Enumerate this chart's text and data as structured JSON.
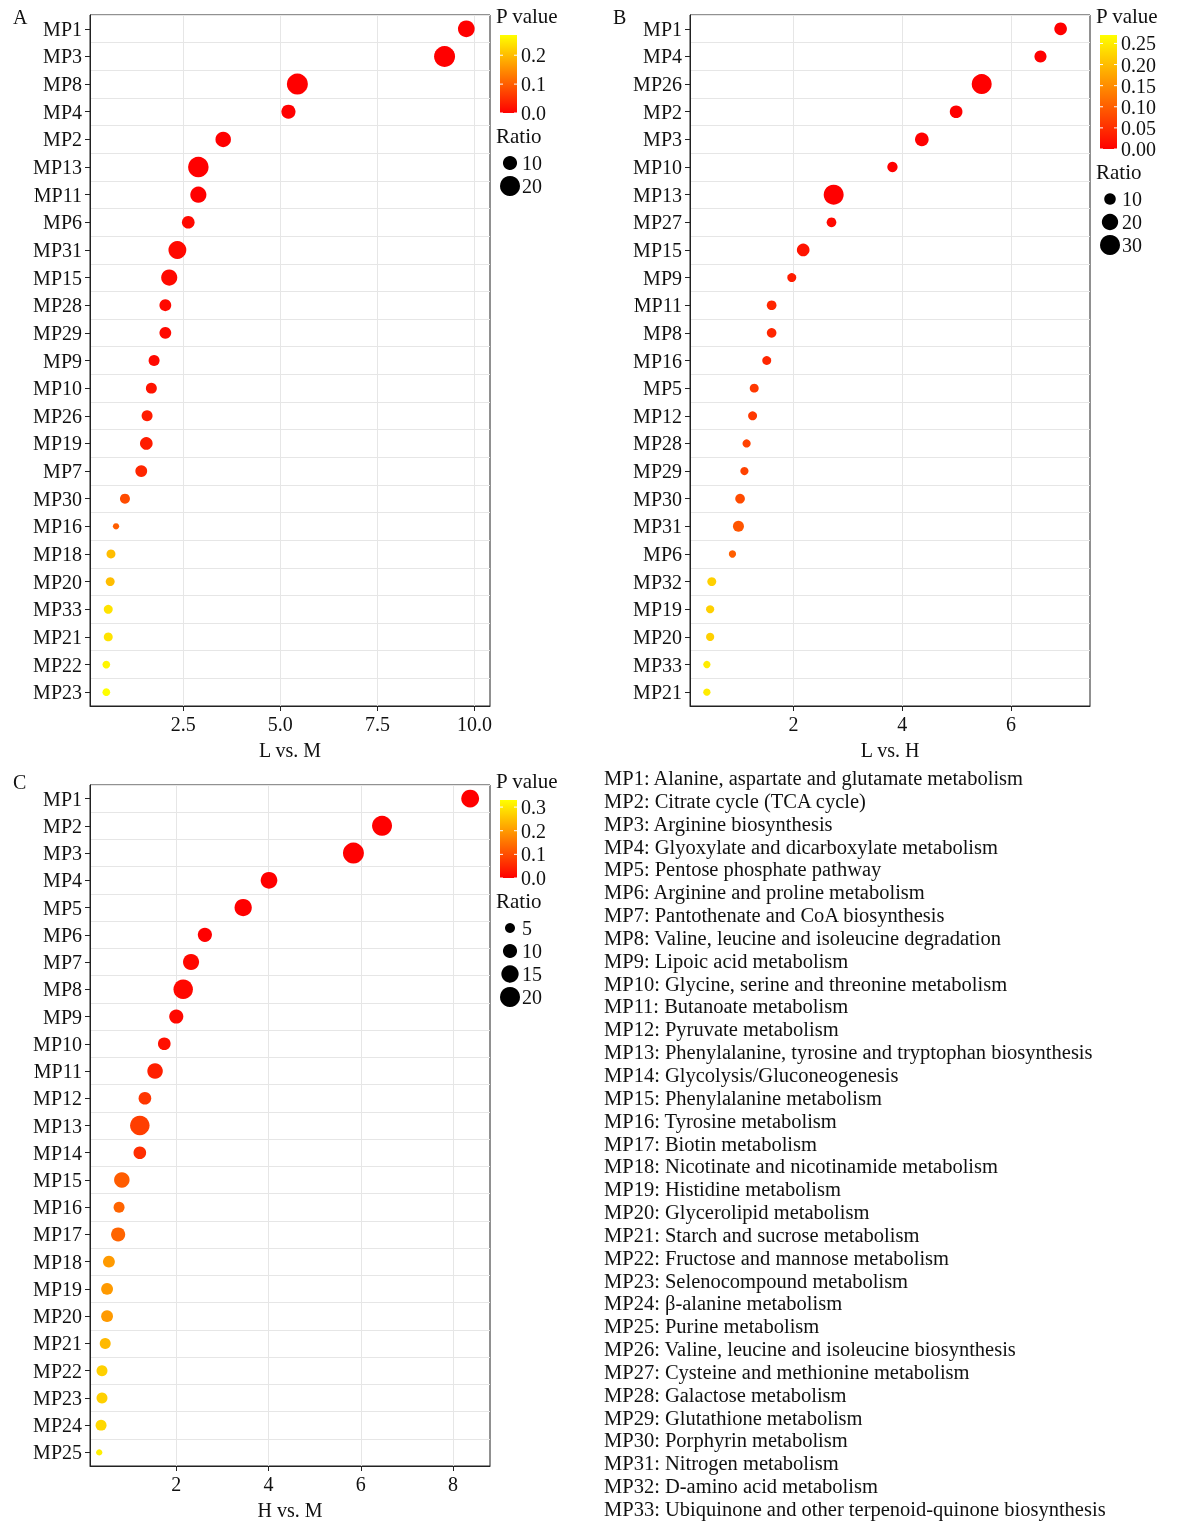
{
  "chart_data": [
    {
      "type": "bubble",
      "title": "A",
      "xlabel": "L vs. M",
      "clabel": "P value",
      "legend_title": "Ratio",
      "orientation": "horizontal",
      "grid": true,
      "categories": [
        "MP1",
        "MP3",
        "MP8",
        "MP4",
        "MP2",
        "MP13",
        "MP11",
        "MP6",
        "MP31",
        "MP15",
        "MP28",
        "MP29",
        "MP9",
        "MP10",
        "MP26",
        "MP19",
        "MP7",
        "MP30",
        "MP16",
        "MP18",
        "MP20",
        "MP33",
        "MP21",
        "MP22",
        "MP23"
      ],
      "values": [
        9.79,
        9.23,
        5.44,
        5.21,
        3.53,
        2.89,
        2.89,
        2.63,
        2.35,
        2.14,
        2.04,
        2.04,
        1.75,
        1.68,
        1.57,
        1.55,
        1.42,
        1.0,
        0.77,
        0.64,
        0.62,
        0.57,
        0.57,
        0.52,
        0.52
      ],
      "sizes": [
        14,
        22,
        22,
        10,
        12,
        21,
        13,
        8,
        16,
        13,
        7,
        7,
        6,
        6,
        6,
        8,
        7,
        5,
        2,
        4,
        4,
        4,
        4,
        3,
        3
      ],
      "cvalues": [
        0.0,
        0.0,
        0.0,
        0.0,
        0.0,
        0.0,
        0.0,
        0.01,
        0.01,
        0.01,
        0.01,
        0.01,
        0.01,
        0.02,
        0.03,
        0.03,
        0.04,
        0.08,
        0.1,
        0.2,
        0.2,
        0.24,
        0.24,
        0.26,
        0.27
      ],
      "clim": [
        0,
        0.27
      ],
      "cticks": [
        {
          "value": 0,
          "label": "0.0"
        },
        0.1,
        0.2
      ],
      "size_legend": [
        10,
        20
      ],
      "xlim": [
        0.1,
        10.4
      ],
      "xticks": [
        2.5,
        {
          "value": 5,
          "label": "5.0"
        },
        7.5,
        {
          "value": 10,
          "label": "10.0"
        }
      ]
    },
    {
      "type": "bubble",
      "title": "B",
      "xlabel": "L vs. H",
      "clabel": "P value",
      "legend_title": "Ratio",
      "orientation": "horizontal",
      "grid": true,
      "categories": [
        "MP1",
        "MP4",
        "MP26",
        "MP2",
        "MP3",
        "MP10",
        "MP13",
        "MP27",
        "MP15",
        "MP9",
        "MP11",
        "MP8",
        "MP16",
        "MP5",
        "MP12",
        "MP28",
        "MP29",
        "MP30",
        "MP31",
        "MP6",
        "MP32",
        "MP19",
        "MP20",
        "MP33",
        "MP21"
      ],
      "values": [
        6.91,
        6.54,
        5.46,
        4.99,
        4.36,
        3.82,
        2.74,
        2.7,
        2.18,
        1.97,
        1.6,
        1.6,
        1.51,
        1.28,
        1.25,
        1.14,
        1.1,
        1.02,
        0.99,
        0.88,
        0.5,
        0.47,
        0.47,
        0.41,
        0.41
      ],
      "sizes": [
        12,
        11,
        30,
        12,
        14,
        8,
        30,
        7,
        12,
        6,
        7,
        7,
        6,
        6,
        6,
        5,
        5,
        7,
        9,
        4,
        6,
        5,
        5,
        4,
        4
      ],
      "cvalues": [
        0.0,
        0.0,
        0.0,
        0.0,
        0.0,
        0.0,
        0.0,
        0.01,
        0.02,
        0.03,
        0.04,
        0.04,
        0.04,
        0.06,
        0.06,
        0.07,
        0.07,
        0.08,
        0.09,
        0.1,
        0.22,
        0.22,
        0.22,
        0.25,
        0.25
      ],
      "clim": [
        0,
        0.27
      ],
      "cticks": [
        {
          "value": 0,
          "label": "0.00"
        },
        0.05,
        {
          "value": 0.1,
          "label": "0.10"
        },
        0.15,
        {
          "value": 0.2,
          "label": "0.20"
        },
        0.25
      ],
      "size_legend": [
        10,
        20,
        30
      ],
      "xlim": [
        0.1,
        7.45
      ],
      "xticks": [
        2,
        4,
        6
      ]
    },
    {
      "type": "bubble",
      "title": "C",
      "xlabel": "H vs. M",
      "clabel": "P value",
      "legend_title": "Ratio",
      "orientation": "horizontal",
      "grid": true,
      "categories": [
        "MP1",
        "MP2",
        "MP3",
        "MP4",
        "MP5",
        "MP6",
        "MP7",
        "MP8",
        "MP9",
        "MP10",
        "MP11",
        "MP12",
        "MP13",
        "MP14",
        "MP15",
        "MP16",
        "MP17",
        "MP18",
        "MP19",
        "MP20",
        "MP21",
        "MP22",
        "MP23",
        "MP24",
        "MP25"
      ],
      "values": [
        8.37,
        6.46,
        5.84,
        4.01,
        3.45,
        2.62,
        2.32,
        2.15,
        2.0,
        1.74,
        1.54,
        1.32,
        1.21,
        1.21,
        0.82,
        0.76,
        0.74,
        0.54,
        0.5,
        0.5,
        0.46,
        0.39,
        0.39,
        0.37,
        0.33
      ],
      "sizes": [
        16,
        20,
        22,
        14,
        15,
        10,
        13,
        19,
        10,
        8,
        12,
        8,
        19,
        8,
        12,
        6,
        10,
        7,
        7,
        7,
        6,
        6,
        6,
        6,
        2
      ],
      "cvalues": [
        0.0,
        0.0,
        0.0,
        0.0,
        0.0,
        0.0,
        0.01,
        0.01,
        0.01,
        0.02,
        0.04,
        0.07,
        0.08,
        0.06,
        0.12,
        0.13,
        0.13,
        0.2,
        0.2,
        0.2,
        0.24,
        0.27,
        0.27,
        0.28,
        0.31
      ],
      "clim": [
        0,
        0.33
      ],
      "cticks": [
        {
          "value": 0,
          "label": "0.0"
        },
        0.1,
        0.2,
        0.3
      ],
      "size_legend": [
        5,
        10,
        15,
        20
      ],
      "xlim": [
        0.13,
        8.8
      ],
      "xticks": [
        2,
        4,
        6,
        8
      ]
    },
    {
      "type": "other",
      "annotations": [
        "MP1: Alanine, aspartate and glutamate metabolism",
        "MP2: Citrate cycle (TCA cycle)",
        "MP3: Arginine biosynthesis",
        "MP4: Glyoxylate and dicarboxylate metabolism",
        "MP5: Pentose phosphate pathway",
        "MP6: Arginine and proline metabolism",
        "MP7: Pantothenate and CoA biosynthesis",
        "MP8: Valine, leucine and isoleucine degradation",
        "MP9: Lipoic acid metabolism",
        "MP10: Glycine, serine and threonine metabolism",
        "MP11: Butanoate metabolism",
        "MP12: Pyruvate metabolism",
        "MP13: Phenylalanine, tyrosine and tryptophan biosynthesis",
        "MP14: Glycolysis/Gluconeogenesis",
        "MP15: Phenylalanine metabolism",
        "MP16: Tyrosine metabolism",
        "MP17: Biotin metabolism",
        "MP18: Nicotinate and nicotinamide metabolism",
        "MP19: Histidine metabolism",
        "MP20: Glycerolipid metabolism",
        "MP21: Starch and sucrose metabolism",
        "MP22: Fructose and mannose metabolism",
        "MP23: Selenocompound metabolism",
        "MP24: β-alanine metabolism",
        "MP25: Purine metabolism",
        "MP26: Valine, leucine and isoleucine biosynthesis",
        "MP27: Cysteine and methionine metabolism",
        "MP28: Galactose metabolism",
        "MP29: Glutathione metabolism",
        "MP30: Porphyrin metabolism",
        "MP31: Nitrogen metabolism",
        "MP32: D-amino acid metabolism",
        "MP33: Ubiquinone and other terpenoid-quinone biosynthesis"
      ]
    }
  ]
}
